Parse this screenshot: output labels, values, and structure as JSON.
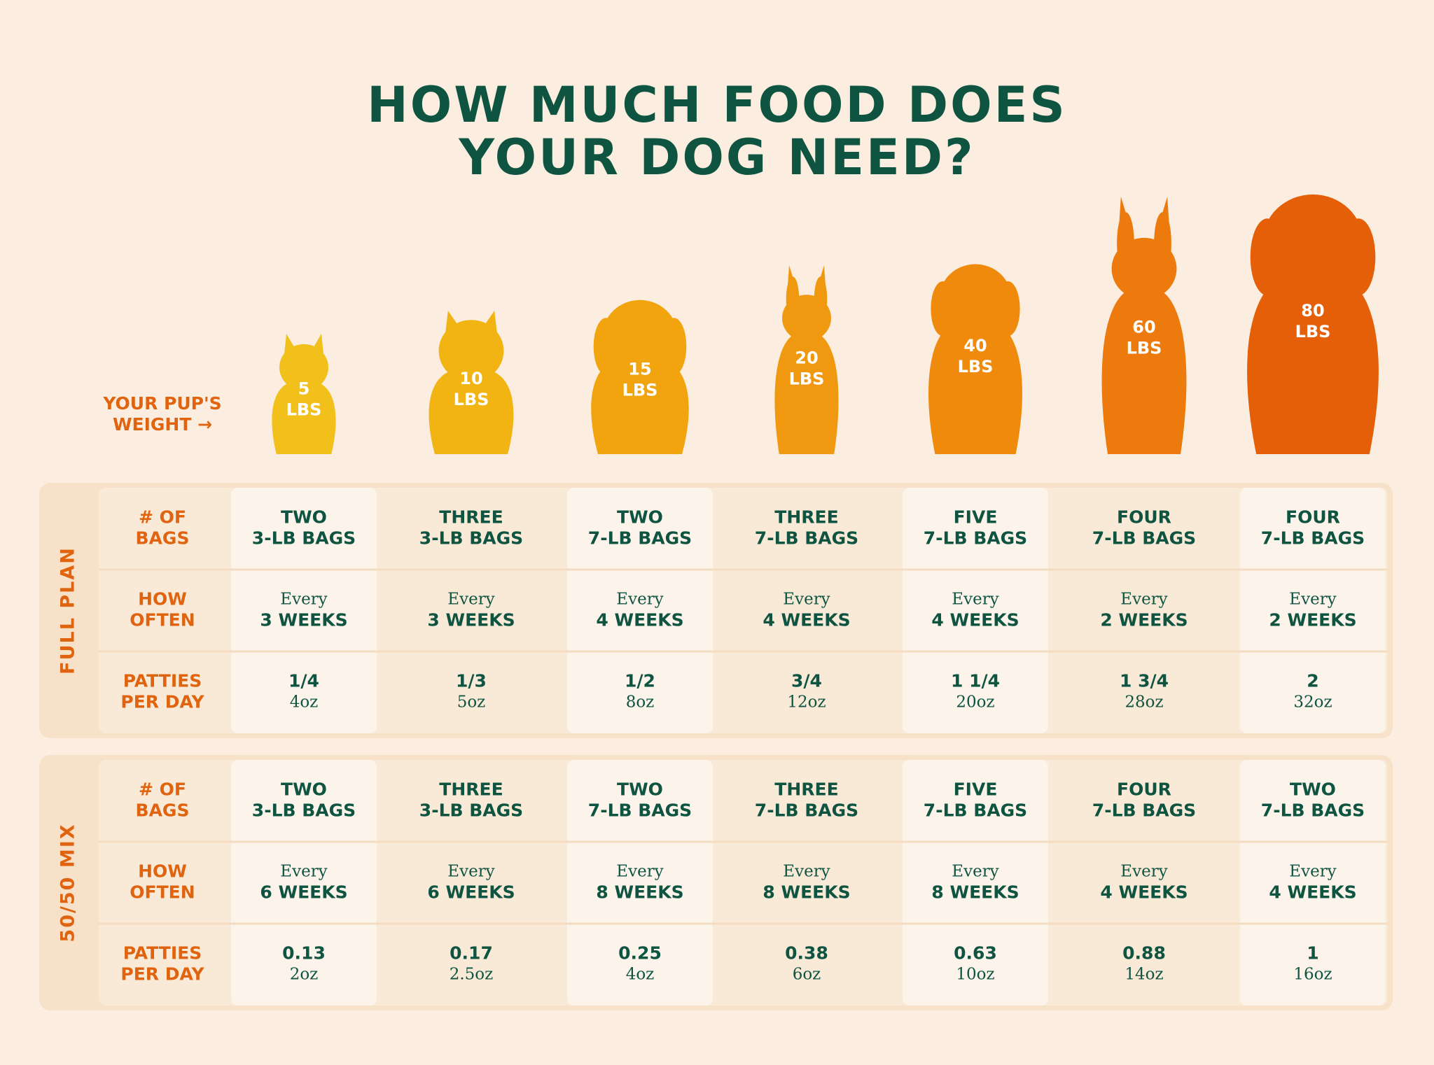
{
  "title": [
    "HOW MUCH FOOD DOES",
    "YOUR DOG NEED?"
  ],
  "weight_label": [
    "YOUR PUP'S",
    "WEIGHT →"
  ],
  "weights": [
    [
      "5",
      "LBS"
    ],
    [
      "10",
      "LBS"
    ],
    [
      "15",
      "LBS"
    ],
    [
      "20",
      "LBS"
    ],
    [
      "40",
      "LBS"
    ],
    [
      "60",
      "LBS"
    ],
    [
      "80",
      "LBS"
    ]
  ],
  "sections": [
    {
      "name": "FULL PLAN",
      "rows": [
        {
          "label": [
            "# OF",
            "BAGS"
          ],
          "cells": [
            [
              "TWO",
              "3-LB BAGS"
            ],
            [
              "THREE",
              "3-LB BAGS"
            ],
            [
              "TWO",
              "7-LB BAGS"
            ],
            [
              "THREE",
              "7-LB BAGS"
            ],
            [
              "FIVE",
              "7-LB BAGS"
            ],
            [
              "FOUR",
              "7-LB BAGS"
            ],
            [
              "FOUR",
              "7-LB BAGS"
            ]
          ]
        },
        {
          "label": [
            "HOW",
            "OFTEN"
          ],
          "cells": [
            [
              "Every",
              "3 WEEKS"
            ],
            [
              "Every",
              "3 WEEKS"
            ],
            [
              "Every",
              "4 WEEKS"
            ],
            [
              "Every",
              "4 WEEKS"
            ],
            [
              "Every",
              "4 WEEKS"
            ],
            [
              "Every",
              "2 WEEKS"
            ],
            [
              "Every",
              "2 WEEKS"
            ]
          ]
        },
        {
          "label": [
            "PATTIES",
            "PER DAY"
          ],
          "cells": [
            [
              "1/4",
              "4oz"
            ],
            [
              "1/3",
              "5oz"
            ],
            [
              "1/2",
              "8oz"
            ],
            [
              "3/4",
              "12oz"
            ],
            [
              "1 1/4",
              "20oz"
            ],
            [
              "1 3/4",
              "28oz"
            ],
            [
              "2",
              "32oz"
            ]
          ]
        }
      ]
    },
    {
      "name": "50/50 MIX",
      "rows": [
        {
          "label": [
            "# OF",
            "BAGS"
          ],
          "cells": [
            [
              "TWO",
              "3-LB BAGS"
            ],
            [
              "THREE",
              "3-LB BAGS"
            ],
            [
              "TWO",
              "7-LB BAGS"
            ],
            [
              "THREE",
              "7-LB BAGS"
            ],
            [
              "FIVE",
              "7-LB BAGS"
            ],
            [
              "FOUR",
              "7-LB BAGS"
            ],
            [
              "TWO",
              "7-LB BAGS"
            ]
          ]
        },
        {
          "label": [
            "HOW",
            "OFTEN"
          ],
          "cells": [
            [
              "Every",
              "6 WEEKS"
            ],
            [
              "Every",
              "6 WEEKS"
            ],
            [
              "Every",
              "8 WEEKS"
            ],
            [
              "Every",
              "8 WEEKS"
            ],
            [
              "Every",
              "8 WEEKS"
            ],
            [
              "Every",
              "4 WEEKS"
            ],
            [
              "Every",
              "4 WEEKS"
            ]
          ]
        },
        {
          "label": [
            "PATTIES",
            "PER DAY"
          ],
          "cells": [
            [
              "0.13",
              "2oz"
            ],
            [
              "0.17",
              "2.5oz"
            ],
            [
              "0.25",
              "4oz"
            ],
            [
              "0.38",
              "6oz"
            ],
            [
              "0.63",
              "10oz"
            ],
            [
              "0.88",
              "14oz"
            ],
            [
              "1",
              "16oz"
            ]
          ]
        }
      ]
    }
  ]
}
